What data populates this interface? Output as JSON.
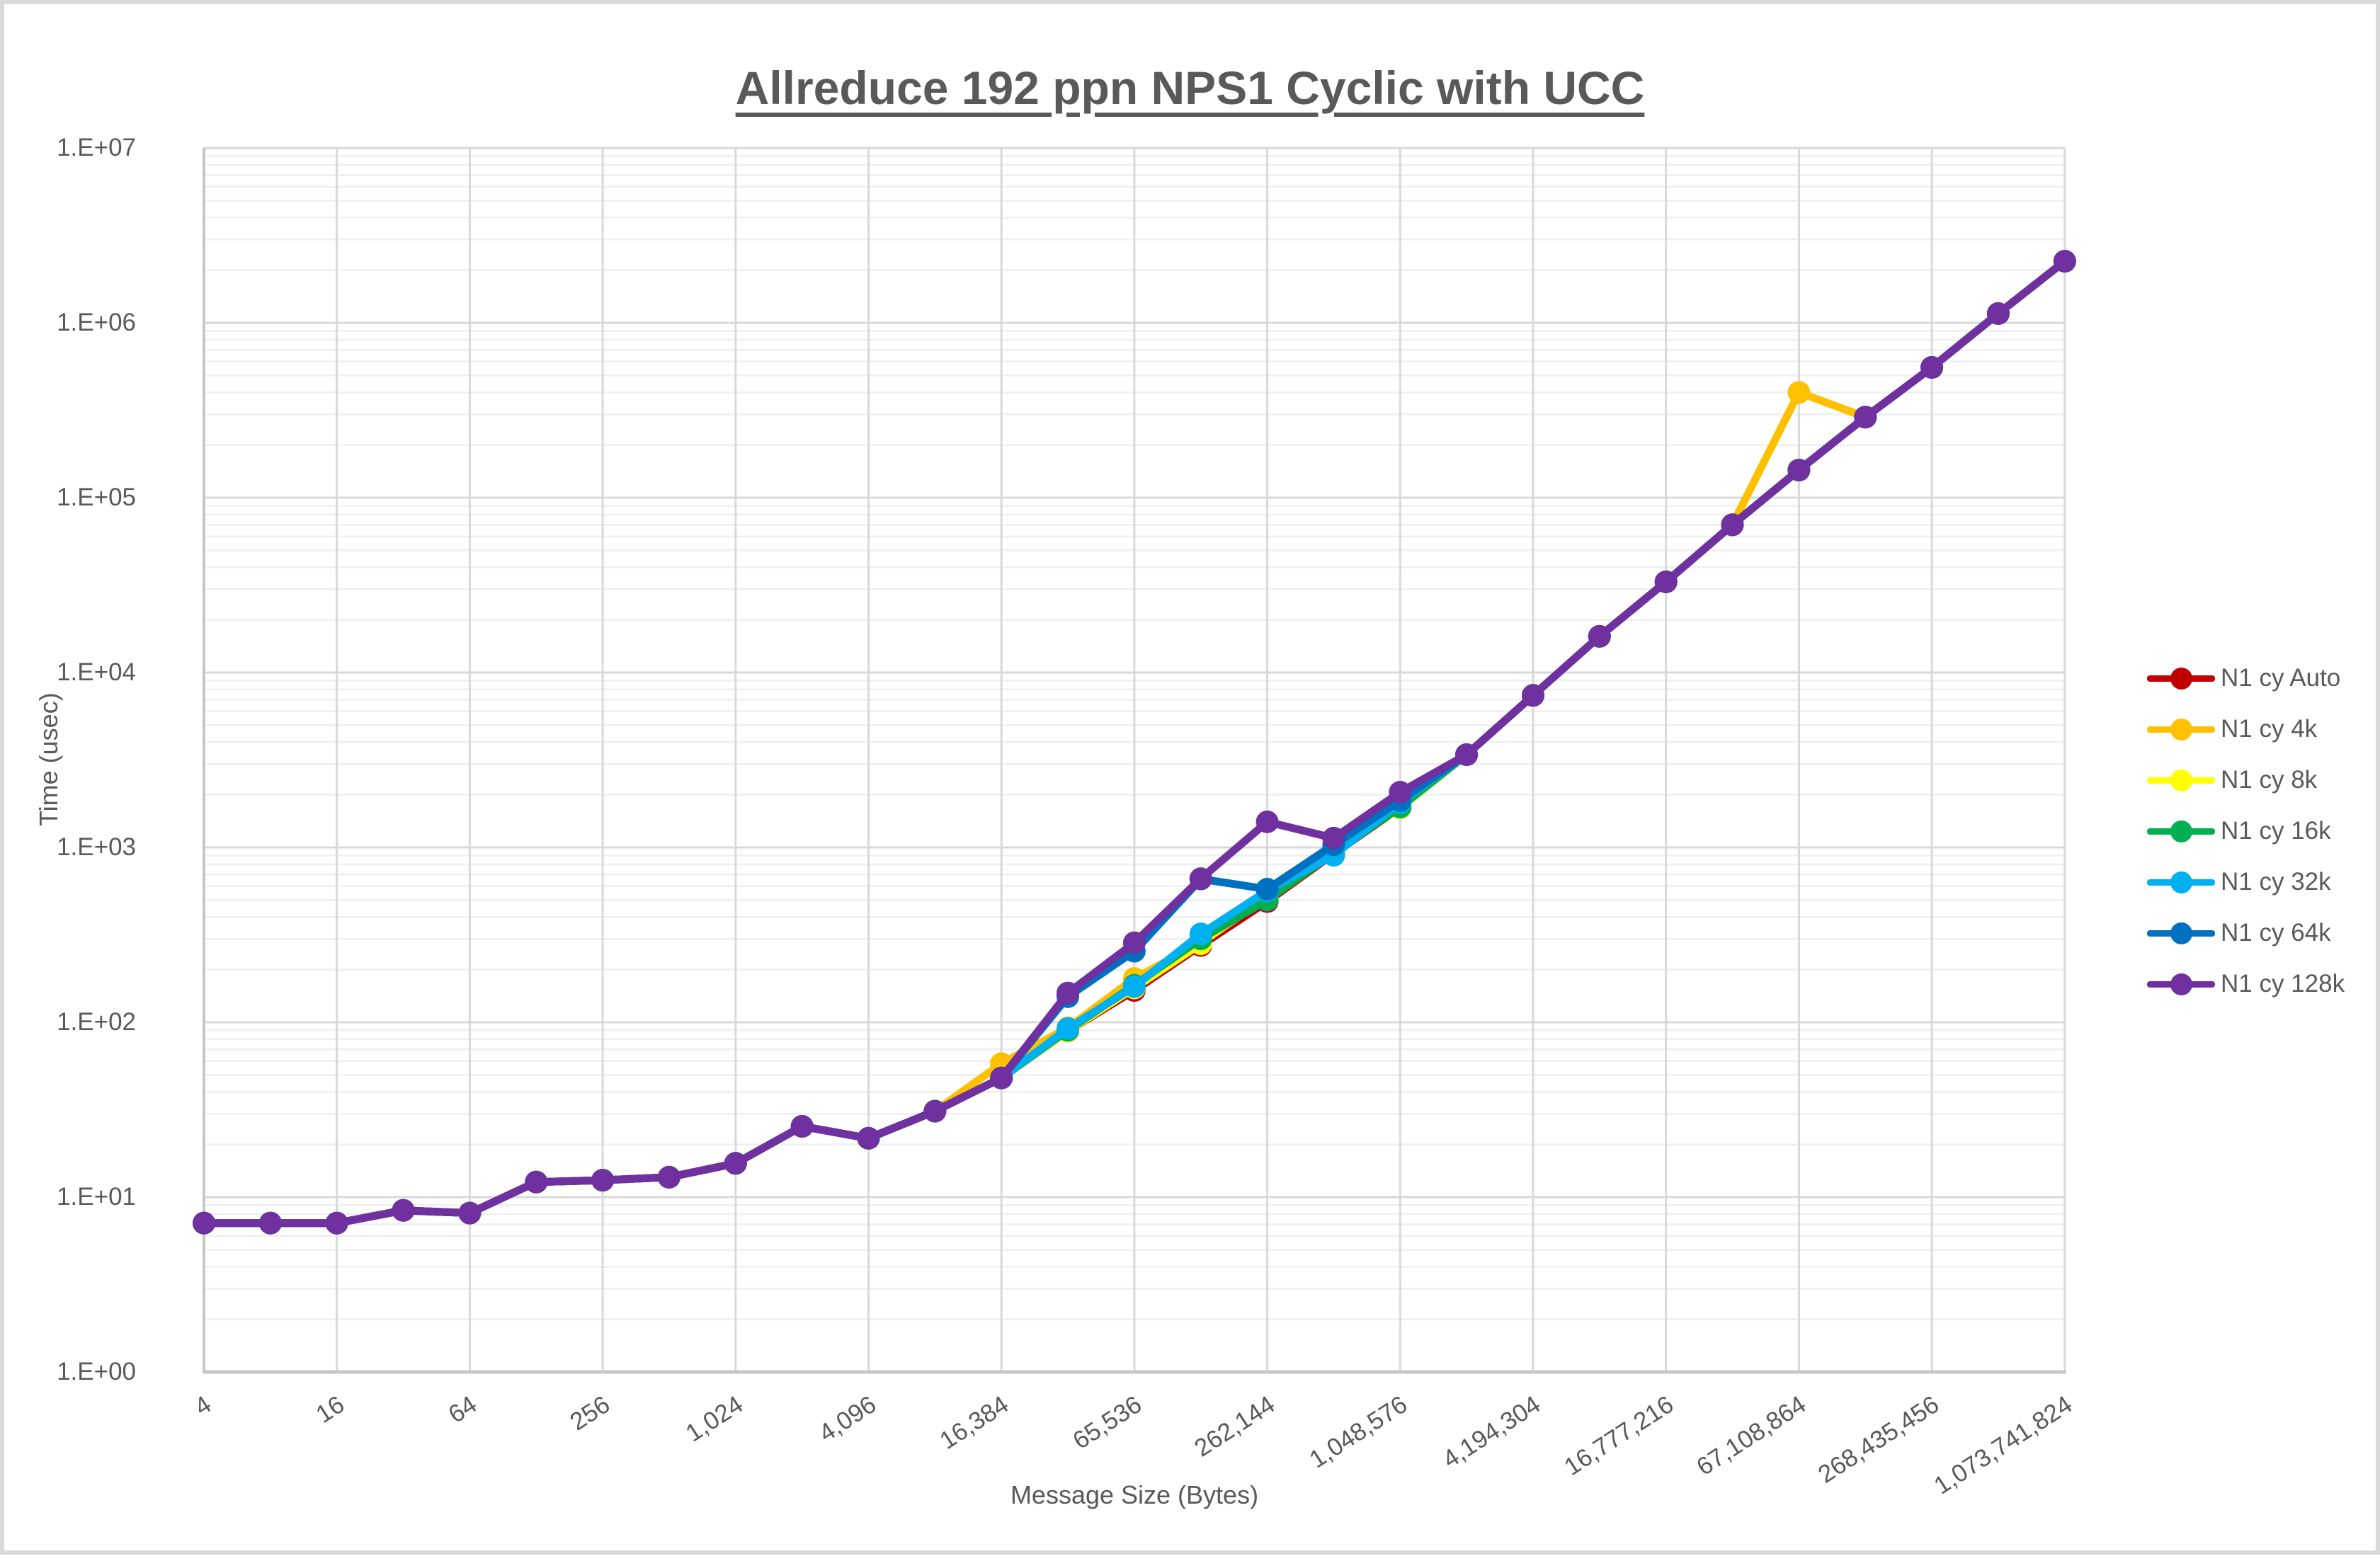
{
  "title": "Allreduce 192 ppn NPS1 Cyclic with UCC",
  "axes": {
    "x_title": "Message Size (Bytes)",
    "y_title": "Time (usec)"
  },
  "chart_data": {
    "type": "line",
    "title": "Allreduce 192 ppn NPS1 Cyclic with UCC",
    "xlabel": "Message Size (Bytes)",
    "ylabel": "Time (usec)",
    "x_scale": "log2",
    "y_scale": "log10",
    "ylim": [
      1,
      10000000
    ],
    "grid": true,
    "legend_position": "right",
    "y_tick_labels": [
      "1.E+00",
      "1.E+01",
      "1.E+02",
      "1.E+03",
      "1.E+04",
      "1.E+05",
      "1.E+06",
      "1.E+07"
    ],
    "x_tick_labels": [
      "4",
      "16",
      "64",
      "256",
      "1,024",
      "4,096",
      "16,384",
      "65,536",
      "262,144",
      "1,048,576",
      "4,194,304",
      "16,777,216",
      "67,108,864",
      "268,435,456",
      "1,073,741,824"
    ],
    "categories": [
      4,
      8,
      16,
      32,
      64,
      128,
      256,
      512,
      1024,
      2048,
      4096,
      8192,
      16384,
      32768,
      65536,
      131072,
      262144,
      524288,
      1048576,
      2097152,
      4194304,
      8388608,
      16777216,
      33554432,
      67108864,
      134217728,
      268435456,
      536870912,
      1073741824
    ],
    "series": [
      {
        "name": "N1 cy Auto",
        "color": "#C00000",
        "values": [
          7.1,
          7.1,
          7.1,
          8.4,
          8.1,
          12.2,
          12.5,
          13,
          15.6,
          25.4,
          21.7,
          31,
          48,
          89,
          152,
          275,
          490,
          920,
          1690,
          3390,
          7400,
          16100,
          33000,
          70000,
          143800,
          289000,
          556000,
          1130000,
          2250000
        ]
      },
      {
        "name": "N1 cy 4k",
        "color": "#FFC000",
        "values": [
          7.1,
          7.1,
          7.1,
          8.4,
          8.1,
          12.2,
          12.5,
          13,
          15.6,
          25.4,
          21.7,
          31,
          58,
          93,
          178,
          285,
          520,
          950,
          1700,
          3390,
          7400,
          16100,
          33000,
          70000,
          400000,
          289000,
          556000,
          1130000,
          2250000
        ]
      },
      {
        "name": "N1 cy 8k",
        "color": "#FFFF00",
        "values": [
          7.1,
          7.1,
          7.1,
          8.4,
          8.1,
          12.2,
          12.5,
          13,
          15.6,
          25.4,
          21.7,
          31,
          48,
          89,
          157,
          281,
          560,
          960,
          1680,
          3390,
          7400,
          16100,
          33000,
          70000,
          143800,
          289000,
          556000,
          1130000,
          2250000
        ]
      },
      {
        "name": "N1 cy 16k",
        "color": "#00B050",
        "values": [
          7.1,
          7.1,
          7.1,
          8.4,
          8.1,
          12.2,
          12.5,
          13,
          15.6,
          25.4,
          21.7,
          31,
          48,
          90,
          163,
          300,
          500,
          930,
          1700,
          3390,
          7400,
          16100,
          33000,
          70000,
          143800,
          289000,
          556000,
          1130000,
          2250000
        ]
      },
      {
        "name": "N1 cy 32k",
        "color": "#00B0F0",
        "values": [
          7.1,
          7.1,
          7.1,
          8.4,
          8.1,
          12.2,
          12.5,
          13,
          15.6,
          25.4,
          21.7,
          31,
          48,
          92,
          160,
          320,
          565,
          902,
          1800,
          3390,
          7400,
          16100,
          33000,
          70000,
          143800,
          289000,
          556000,
          1130000,
          2250000
        ]
      },
      {
        "name": "N1 cy 64k",
        "color": "#0070C0",
        "values": [
          7.1,
          7.1,
          7.1,
          8.4,
          8.1,
          12.2,
          12.5,
          13,
          15.6,
          25.4,
          21.7,
          31,
          48,
          140,
          255,
          660,
          577,
          1035,
          1850,
          3390,
          7400,
          16100,
          33000,
          70000,
          143800,
          289000,
          556000,
          1130000,
          2250000
        ]
      },
      {
        "name": "N1 cy 128k",
        "color": "#7030A0",
        "values": [
          7.1,
          7.1,
          7.1,
          8.4,
          8.1,
          12.2,
          12.5,
          13,
          15.6,
          25.4,
          21.7,
          31,
          48,
          147,
          285,
          663,
          1400,
          1130,
          2070,
          3390,
          7400,
          16100,
          33000,
          70000,
          143800,
          289000,
          556000,
          1130000,
          2250000
        ]
      }
    ]
  }
}
